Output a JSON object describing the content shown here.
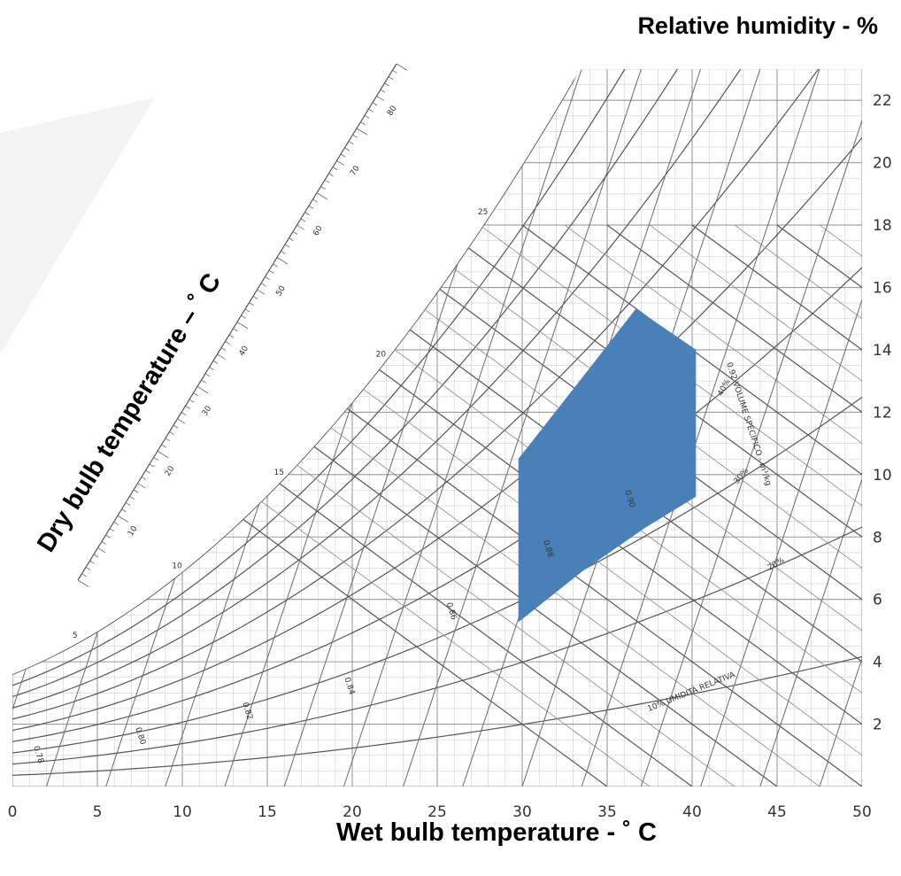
{
  "chart_data": {
    "type": "area",
    "xlabel": "Wet bulb temperature - ˚ C",
    "ylabel": "Dry bulb temperature – ˚ C",
    "secondary_label": "Relative humidity - %",
    "x_ticks": [
      "0",
      "5",
      "10",
      "15",
      "20",
      "25",
      "30",
      "35",
      "40",
      "45",
      "50"
    ],
    "y_ticks": [
      "2",
      "4",
      "6",
      "8",
      "10",
      "12",
      "14",
      "16",
      "18",
      "20",
      "22"
    ],
    "xlim": [
      0,
      50
    ],
    "ylim": [
      0,
      23
    ],
    "grid": true,
    "rh_curves": [
      10,
      20,
      30,
      40,
      50,
      60,
      70,
      80,
      90,
      100
    ],
    "rh_labels": [
      "10% UMIDITÀ RELATIVA",
      "20%",
      "30%",
      "40%"
    ],
    "volume_lines": [
      0.78,
      0.8,
      0.82,
      0.84,
      0.86,
      0.88,
      0.9,
      0.92
    ],
    "volume_labels": [
      "0.78",
      "0.80",
      "0.82",
      "0.84",
      "0.86",
      "0.88",
      "0.90",
      "0.92 VOLUME SPECIFICO - m³/kg"
    ],
    "wetbulb_scale_labels": [
      "5",
      "10",
      "15",
      "20",
      "25"
    ],
    "enthalpy_labels": [
      "10",
      "20",
      "30",
      "40",
      "50",
      "60",
      "70",
      "80"
    ],
    "series": [
      {
        "points": [
          [
            29.8,
            5.3
          ],
          [
            33.5,
            6.9
          ],
          [
            37.2,
            8.3
          ],
          [
            40.2,
            9.3
          ],
          [
            40.2,
            14.0
          ],
          [
            36.7,
            15.3
          ],
          [
            33.7,
            13.2
          ],
          [
            29.8,
            10.5
          ]
        ],
        "color": "#4a80b8"
      }
    ]
  }
}
